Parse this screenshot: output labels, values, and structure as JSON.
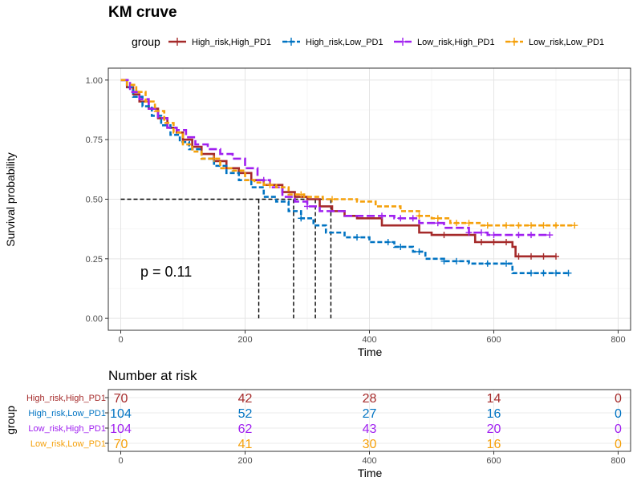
{
  "chart_data": [
    {
      "type": "line",
      "subtype": "kaplan-meier",
      "title": "KM cruve",
      "xlabel": "Time",
      "ylabel": "Survival probability",
      "xlim": [
        -20,
        820
      ],
      "ylim": [
        -0.05,
        1.05
      ],
      "xticks": [
        0,
        200,
        400,
        600,
        800
      ],
      "yticks": [
        0.0,
        0.25,
        0.5,
        0.75,
        1.0
      ],
      "ytick_labels": [
        "0.00",
        "0.25",
        "0.50",
        "0.75",
        "1.00"
      ],
      "grid": true,
      "legend": {
        "title": "group",
        "position": "top"
      },
      "annotation": "p = 0.11",
      "median_line_y": 0.5,
      "median_times": [
        222,
        278,
        313,
        338
      ],
      "series": [
        {
          "name": "High_risk,High_PD1",
          "color": "#A52A2A",
          "dash": "solid",
          "times": [
            0,
            10,
            20,
            30,
            45,
            60,
            75,
            90,
            100,
            115,
            130,
            150,
            170,
            190,
            210,
            230,
            260,
            280,
            300,
            320,
            340,
            360,
            380,
            400,
            420,
            460,
            480,
            500,
            540,
            570,
            630,
            635
          ],
          "survival": [
            1.0,
            0.97,
            0.94,
            0.91,
            0.88,
            0.84,
            0.8,
            0.78,
            0.75,
            0.72,
            0.69,
            0.66,
            0.63,
            0.61,
            0.58,
            0.56,
            0.53,
            0.51,
            0.5,
            0.47,
            0.45,
            0.43,
            0.42,
            0.42,
            0.39,
            0.39,
            0.36,
            0.35,
            0.35,
            0.32,
            0.3,
            0.26
          ],
          "censors": [
            520,
            580,
            600,
            620,
            640,
            660,
            680,
            700
          ]
        },
        {
          "name": "High_risk,Low_PD1",
          "color": "#0073C2",
          "dash": "dashed",
          "times": [
            0,
            10,
            20,
            35,
            50,
            65,
            80,
            95,
            110,
            130,
            150,
            170,
            190,
            210,
            230,
            250,
            270,
            290,
            310,
            330,
            360,
            400,
            440,
            470,
            490,
            520,
            560,
            600,
            630,
            640
          ],
          "survival": [
            1.0,
            0.97,
            0.93,
            0.89,
            0.85,
            0.81,
            0.77,
            0.74,
            0.71,
            0.67,
            0.64,
            0.61,
            0.58,
            0.55,
            0.51,
            0.49,
            0.45,
            0.42,
            0.39,
            0.36,
            0.34,
            0.32,
            0.3,
            0.28,
            0.25,
            0.24,
            0.23,
            0.23,
            0.19,
            0.19
          ],
          "censors": [
            290,
            380,
            430,
            450,
            480,
            520,
            540,
            590,
            620,
            660,
            680,
            700,
            720
          ]
        },
        {
          "name": "Low_risk,High_PD1",
          "color": "#A020F0",
          "dash": "longdash",
          "times": [
            0,
            15,
            30,
            45,
            60,
            75,
            90,
            105,
            120,
            140,
            160,
            180,
            200,
            220,
            240,
            260,
            280,
            300,
            320,
            360,
            400,
            440,
            480,
            520,
            560,
            590
          ],
          "survival": [
            1.0,
            0.95,
            0.92,
            0.88,
            0.84,
            0.8,
            0.79,
            0.76,
            0.73,
            0.71,
            0.69,
            0.67,
            0.63,
            0.58,
            0.55,
            0.51,
            0.49,
            0.47,
            0.45,
            0.43,
            0.43,
            0.42,
            0.4,
            0.38,
            0.36,
            0.35
          ],
          "censors": [
            230,
            300,
            420,
            450,
            470,
            510,
            560,
            580,
            600,
            640,
            660,
            690
          ]
        },
        {
          "name": "Low_risk,Low_PD1",
          "color": "#F5A00A",
          "dash": "dashed",
          "times": [
            0,
            10,
            25,
            40,
            55,
            70,
            85,
            100,
            115,
            130,
            160,
            180,
            200,
            215,
            230,
            250,
            270,
            295,
            325,
            380,
            410,
            450,
            480,
            500,
            530,
            580,
            600
          ],
          "survival": [
            1.0,
            0.98,
            0.95,
            0.91,
            0.87,
            0.82,
            0.78,
            0.73,
            0.7,
            0.67,
            0.63,
            0.62,
            0.58,
            0.57,
            0.56,
            0.55,
            0.52,
            0.51,
            0.5,
            0.49,
            0.47,
            0.45,
            0.43,
            0.42,
            0.4,
            0.39,
            0.39
          ],
          "censors": [
            150,
            240,
            290,
            340,
            480,
            510,
            540,
            560,
            590,
            620,
            640,
            660,
            680,
            700,
            730
          ]
        }
      ]
    },
    {
      "type": "table",
      "title": "Number at risk",
      "xlabel": "Time",
      "ylabel": "group",
      "xticks": [
        0,
        200,
        400,
        600,
        800
      ],
      "rows": [
        {
          "name": "High_risk,High_PD1",
          "color": "#A52A2A",
          "values": [
            70,
            42,
            28,
            14,
            0
          ]
        },
        {
          "name": "High_risk,Low_PD1",
          "color": "#0073C2",
          "values": [
            104,
            52,
            27,
            16,
            0
          ]
        },
        {
          "name": "Low_risk,High_PD1",
          "color": "#A020F0",
          "values": [
            104,
            62,
            43,
            20,
            0
          ]
        },
        {
          "name": "Low_risk,Low_PD1",
          "color": "#F5A00A",
          "values": [
            70,
            41,
            30,
            16,
            0
          ]
        }
      ]
    }
  ]
}
